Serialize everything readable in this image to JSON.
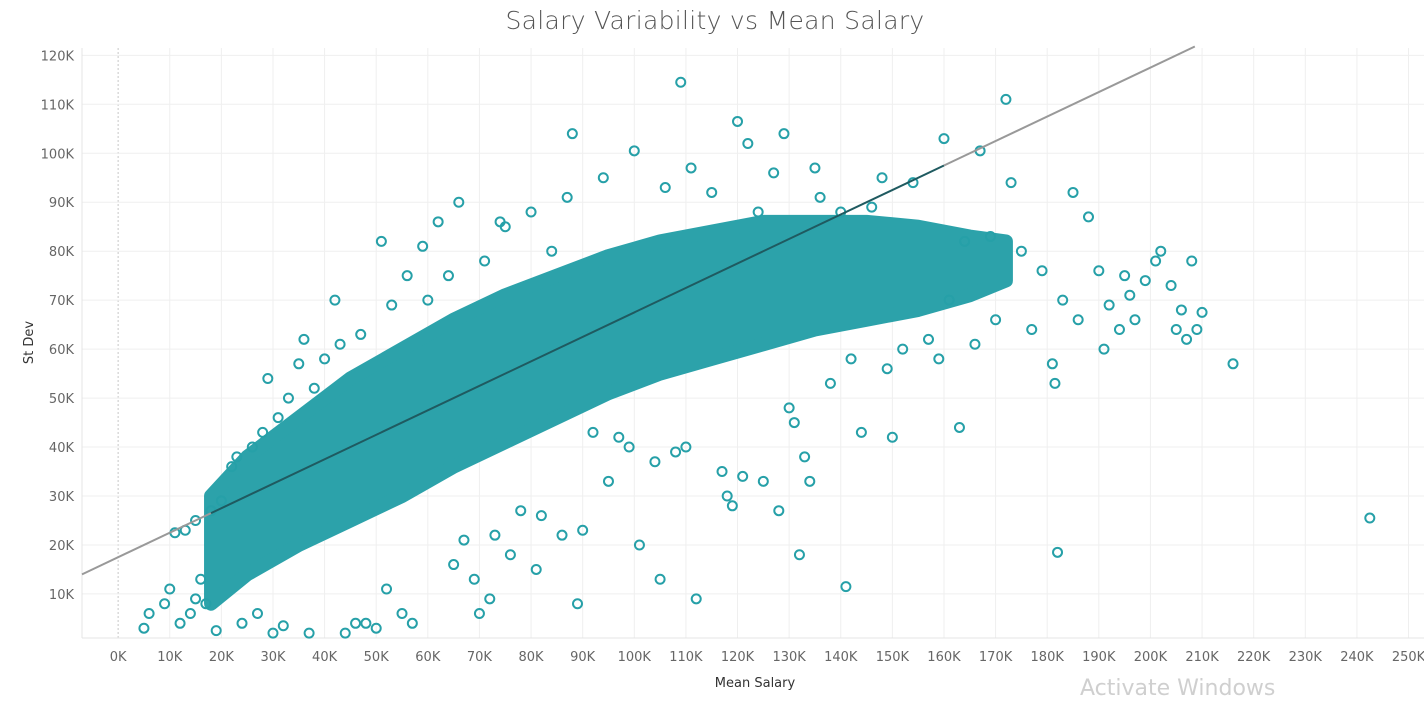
{
  "chart_data": {
    "type": "scatter",
    "title": "Salary Variability vs Mean Salary",
    "xlabel": "Mean Salary",
    "ylabel": "St Dev",
    "x_ticks": [
      "0K",
      "10K",
      "20K",
      "30K",
      "40K",
      "50K",
      "60K",
      "70K",
      "80K",
      "90K",
      "100K",
      "110K",
      "120K",
      "130K",
      "140K",
      "150K",
      "160K",
      "170K",
      "180K",
      "190K",
      "200K",
      "210K",
      "220K",
      "230K",
      "240K",
      "250K"
    ],
    "y_ticks": [
      "10K",
      "20K",
      "30K",
      "40K",
      "50K",
      "60K",
      "70K",
      "80K",
      "90K",
      "100K",
      "110K",
      "120K"
    ],
    "xlim": [
      -7000,
      253000
    ],
    "ylim": [
      1000,
      121500
    ],
    "grid": true,
    "marker": "hollow-circle",
    "colors": {
      "points": "#26a0a8",
      "trend": "#999999",
      "trend_dense": "#1f5a60"
    },
    "trend_line": {
      "slope": 0.5,
      "intercept": 17500
    },
    "series": [
      {
        "points": [
          [
            5000,
            3000
          ],
          [
            6000,
            6000
          ],
          [
            9000,
            8000
          ],
          [
            10000,
            11000
          ],
          [
            12000,
            4000
          ],
          [
            14000,
            6000
          ],
          [
            15000,
            9000
          ],
          [
            11000,
            22500
          ],
          [
            13000,
            23000
          ],
          [
            15000,
            25000
          ],
          [
            16000,
            13000
          ],
          [
            17000,
            8000
          ],
          [
            18000,
            27000
          ],
          [
            19000,
            2500
          ],
          [
            20000,
            29000
          ],
          [
            22000,
            36000
          ],
          [
            23000,
            38000
          ],
          [
            24000,
            4000
          ],
          [
            26000,
            40000
          ],
          [
            27000,
            6000
          ],
          [
            28000,
            43000
          ],
          [
            29000,
            54000
          ],
          [
            30000,
            2000
          ],
          [
            31000,
            46000
          ],
          [
            32000,
            3500
          ],
          [
            33000,
            50000
          ],
          [
            35000,
            57000
          ],
          [
            36000,
            62000
          ],
          [
            37000,
            2000
          ],
          [
            38000,
            52000
          ],
          [
            40000,
            58000
          ],
          [
            42000,
            70000
          ],
          [
            43000,
            61000
          ],
          [
            44000,
            2000
          ],
          [
            46000,
            4000
          ],
          [
            47000,
            63000
          ],
          [
            48000,
            4000
          ],
          [
            50000,
            3000
          ],
          [
            51000,
            82000
          ],
          [
            52000,
            11000
          ],
          [
            53000,
            69000
          ],
          [
            55000,
            6000
          ],
          [
            56000,
            75000
          ],
          [
            57000,
            4000
          ],
          [
            59000,
            81000
          ],
          [
            60000,
            70000
          ],
          [
            62000,
            86000
          ],
          [
            64000,
            75000
          ],
          [
            65000,
            16000
          ],
          [
            66000,
            90000
          ],
          [
            67000,
            21000
          ],
          [
            69000,
            13000
          ],
          [
            70000,
            6000
          ],
          [
            71000,
            78000
          ],
          [
            72000,
            9000
          ],
          [
            73000,
            22000
          ],
          [
            74000,
            86000
          ],
          [
            75000,
            85000
          ],
          [
            76000,
            18000
          ],
          [
            78000,
            27000
          ],
          [
            80000,
            88000
          ],
          [
            81000,
            15000
          ],
          [
            82000,
            26000
          ],
          [
            84000,
            80000
          ],
          [
            86000,
            22000
          ],
          [
            87000,
            91000
          ],
          [
            88000,
            104000
          ],
          [
            89000,
            8000
          ],
          [
            90000,
            23000
          ],
          [
            92000,
            43000
          ],
          [
            94000,
            95000
          ],
          [
            95000,
            33000
          ],
          [
            97000,
            42000
          ],
          [
            99000,
            40000
          ],
          [
            100000,
            100500
          ],
          [
            101000,
            20000
          ],
          [
            104000,
            37000
          ],
          [
            105000,
            13000
          ],
          [
            106000,
            93000
          ],
          [
            108000,
            39000
          ],
          [
            109000,
            114500
          ],
          [
            110000,
            40000
          ],
          [
            111000,
            97000
          ],
          [
            112000,
            9000
          ],
          [
            115000,
            92000
          ],
          [
            117000,
            35000
          ],
          [
            118000,
            30000
          ],
          [
            119000,
            28000
          ],
          [
            120000,
            106500
          ],
          [
            121000,
            34000
          ],
          [
            122000,
            102000
          ],
          [
            124000,
            88000
          ],
          [
            125000,
            33000
          ],
          [
            127000,
            96000
          ],
          [
            128000,
            27000
          ],
          [
            129000,
            104000
          ],
          [
            130000,
            48000
          ],
          [
            131000,
            45000
          ],
          [
            132000,
            18000
          ],
          [
            133000,
            38000
          ],
          [
            134000,
            33000
          ],
          [
            135000,
            97000
          ],
          [
            136000,
            91000
          ],
          [
            138000,
            53000
          ],
          [
            140000,
            88000
          ],
          [
            141000,
            11500
          ],
          [
            142000,
            58000
          ],
          [
            144000,
            43000
          ],
          [
            146000,
            89000
          ],
          [
            148000,
            95000
          ],
          [
            149000,
            56000
          ],
          [
            150000,
            42000
          ],
          [
            152000,
            60000
          ],
          [
            154000,
            94000
          ],
          [
            157000,
            62000
          ],
          [
            159000,
            58000
          ],
          [
            160000,
            103000
          ],
          [
            161000,
            70000
          ],
          [
            163000,
            44000
          ],
          [
            164000,
            82000
          ],
          [
            166000,
            61000
          ],
          [
            167000,
            100500
          ],
          [
            169000,
            83000
          ],
          [
            170000,
            66000
          ],
          [
            172000,
            111000
          ],
          [
            173000,
            94000
          ],
          [
            175000,
            80000
          ],
          [
            177000,
            64000
          ],
          [
            179000,
            76000
          ],
          [
            181000,
            57000
          ],
          [
            181500,
            53000
          ],
          [
            182000,
            18500
          ],
          [
            183000,
            70000
          ],
          [
            185000,
            92000
          ],
          [
            186000,
            66000
          ],
          [
            188000,
            87000
          ],
          [
            190000,
            76000
          ],
          [
            191000,
            60000
          ],
          [
            192000,
            69000
          ],
          [
            194000,
            64000
          ],
          [
            195000,
            75000
          ],
          [
            196000,
            71000
          ],
          [
            197000,
            66000
          ],
          [
            199000,
            74000
          ],
          [
            201000,
            78000
          ],
          [
            202000,
            80000
          ],
          [
            204000,
            73000
          ],
          [
            205000,
            64000
          ],
          [
            206000,
            68000
          ],
          [
            207000,
            62000
          ],
          [
            208000,
            78000
          ],
          [
            209000,
            64000
          ],
          [
            210000,
            67500
          ],
          [
            216000,
            57000
          ],
          [
            242500,
            25500
          ]
        ]
      }
    ]
  }
}
